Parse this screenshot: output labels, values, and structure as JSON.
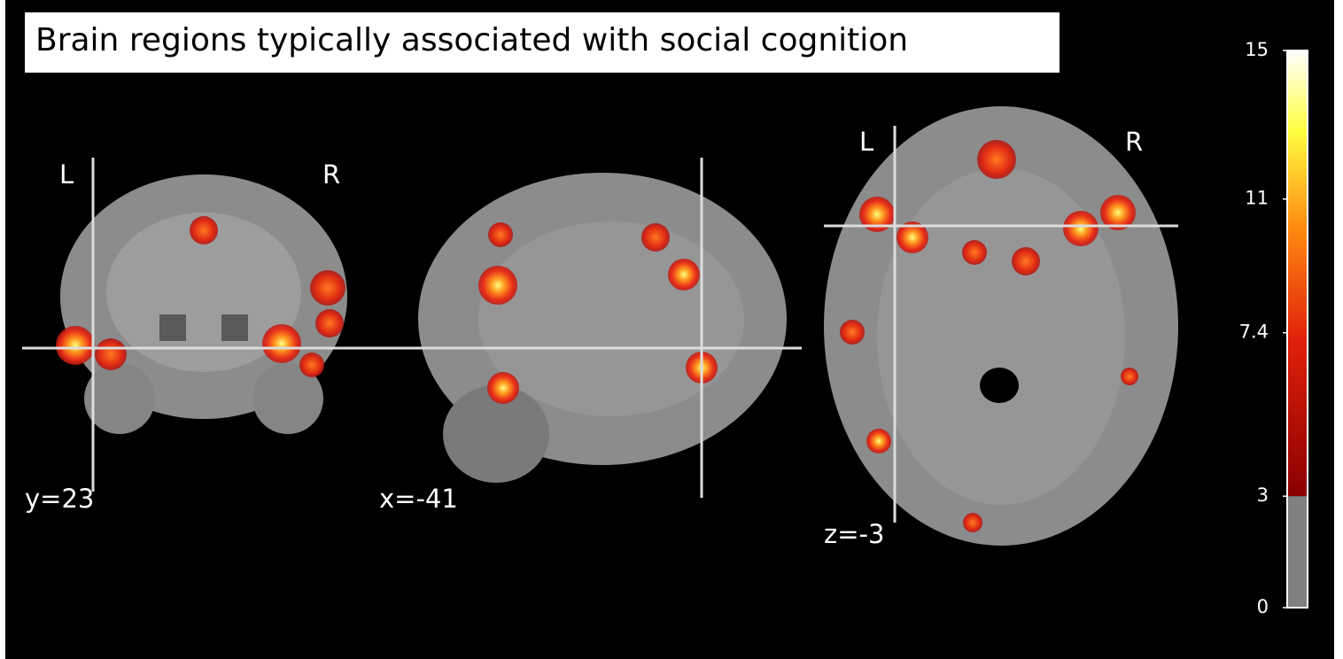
{
  "title": "Brain regions typically associated with social cognition",
  "panels": [
    {
      "label": "y=23",
      "left": "L",
      "right": "R"
    },
    {
      "label": "x=-41"
    },
    {
      "label": "z=-3",
      "left": "L",
      "right": "R"
    }
  ],
  "colorbar": {
    "range": [
      0,
      15
    ],
    "ticks": [
      0,
      3,
      7.4,
      11,
      15
    ]
  }
}
